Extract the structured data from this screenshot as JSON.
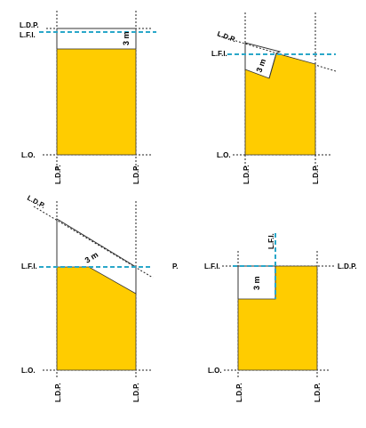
{
  "labels": {
    "ldp": "L.D.P.",
    "lfi": "L.F.I.",
    "lo": "L.O.",
    "dimension": "3 m",
    "stray_p": "P."
  },
  "colors": {
    "fill": "#ffcc00",
    "dash": "#2aa7c9",
    "line": "#333333",
    "white": "#ffffff"
  }
}
